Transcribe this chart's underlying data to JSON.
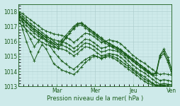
{
  "xlabel": "Pression niveau de la mer( hPa )",
  "bg_color": "#ceeaea",
  "line_color": "#1a5c1a",
  "grid_major_color": "#a8c8c8",
  "grid_minor_color": "#b8d8d8",
  "axis_color": "#1a5c1a",
  "tick_label_color": "#1a5c1a",
  "ylim": [
    1013.0,
    1018.5
  ],
  "yticks": [
    1013,
    1014,
    1015,
    1016,
    1017,
    1018
  ],
  "day_labels": [
    "Mar",
    "Mer",
    "Jeu",
    "Ven"
  ],
  "day_positions": [
    0.25,
    0.5,
    0.75,
    1.0
  ],
  "lines": [
    [
      1018.0,
      1017.85,
      1017.65,
      1017.45,
      1017.25,
      1017.05,
      1016.85,
      1016.7,
      1016.6,
      1016.5,
      1016.45,
      1016.4,
      1016.3,
      1016.15,
      1015.95,
      1016.1,
      1016.35,
      1016.55,
      1016.5,
      1016.35,
      1016.15,
      1015.95,
      1016.0,
      1016.1,
      1016.05,
      1016.0,
      1015.85,
      1015.6,
      1015.35,
      1015.1,
      1014.9,
      1014.7,
      1014.55,
      1014.35,
      1014.15,
      1013.95,
      1013.8,
      1013.85,
      1013.8,
      1013.75
    ],
    [
      1017.75,
      1017.55,
      1017.3,
      1017.05,
      1016.8,
      1016.6,
      1016.45,
      1016.3,
      1016.2,
      1016.1,
      1016.05,
      1016.0,
      1015.9,
      1015.75,
      1015.55,
      1015.7,
      1015.95,
      1016.15,
      1016.1,
      1015.95,
      1015.75,
      1015.55,
      1015.6,
      1015.7,
      1015.65,
      1015.6,
      1015.45,
      1015.2,
      1014.95,
      1014.7,
      1014.5,
      1014.3,
      1014.15,
      1013.95,
      1013.75,
      1013.55,
      1013.4,
      1013.45,
      1013.4,
      1013.35
    ],
    [
      1017.5,
      1017.3,
      1017.05,
      1016.8,
      1016.55,
      1016.35,
      1016.2,
      1016.05,
      1015.95,
      1015.85,
      1015.8,
      1015.75,
      1015.65,
      1015.5,
      1015.3,
      1015.45,
      1015.7,
      1015.9,
      1015.85,
      1015.7,
      1015.5,
      1015.3,
      1015.35,
      1015.45,
      1015.4,
      1015.35,
      1015.2,
      1014.95,
      1014.7,
      1014.45,
      1014.25,
      1014.05,
      1013.9,
      1013.7,
      1013.5,
      1013.3,
      1013.15,
      1013.2,
      1013.15,
      1013.1
    ],
    [
      1017.25,
      1017.05,
      1016.8,
      1016.55,
      1016.3,
      1016.1,
      1015.95,
      1015.8,
      1015.7,
      1015.6,
      1015.55,
      1015.5,
      1015.4,
      1015.25,
      1015.05,
      1015.2,
      1015.45,
      1015.65,
      1015.6,
      1015.45,
      1015.25,
      1015.05,
      1015.1,
      1015.2,
      1015.15,
      1015.1,
      1014.95,
      1014.7,
      1014.45,
      1014.2,
      1014.0,
      1013.8,
      1013.65,
      1013.45,
      1013.25,
      1013.05,
      1013.0,
      1013.0,
      1013.0,
      1013.0
    ],
    [
      1017.7,
      1016.8,
      1016.0,
      1015.3,
      1014.7,
      1015.3,
      1015.8,
      1015.5,
      1015.0,
      1014.5,
      1014.3,
      1014.1,
      1014.0,
      1013.9,
      1013.8,
      1014.0,
      1014.3,
      1014.6,
      1014.8,
      1015.0,
      1015.0,
      1014.9,
      1015.0,
      1015.1,
      1015.0,
      1014.9,
      1014.7,
      1014.5,
      1014.3,
      1014.1,
      1013.9,
      1013.7,
      1013.5,
      1013.35,
      1013.2,
      1013.1,
      1013.1,
      1013.1,
      1013.1,
      1013.1
    ],
    [
      1017.9,
      1017.3,
      1016.7,
      1016.15,
      1015.65,
      1016.0,
      1016.35,
      1016.1,
      1015.7,
      1015.3,
      1015.0,
      1014.7,
      1014.5,
      1014.3,
      1014.15,
      1014.35,
      1014.6,
      1014.8,
      1014.95,
      1015.1,
      1015.0,
      1014.85,
      1014.95,
      1015.0,
      1014.9,
      1014.75,
      1014.55,
      1014.35,
      1014.15,
      1013.95,
      1013.75,
      1013.55,
      1013.35,
      1013.2,
      1013.1,
      1013.05,
      1013.05,
      1013.05,
      1013.0,
      1013.0
    ],
    [
      1017.85,
      1017.55,
      1017.25,
      1016.95,
      1016.7,
      1016.5,
      1016.3,
      1016.1,
      1015.9,
      1015.7,
      1015.5,
      1015.85,
      1016.2,
      1016.55,
      1016.9,
      1017.15,
      1017.2,
      1017.0,
      1016.8,
      1016.6,
      1016.4,
      1016.2,
      1016.0,
      1015.85,
      1015.7,
      1015.55,
      1015.4,
      1015.2,
      1015.0,
      1014.8,
      1014.6,
      1014.4,
      1014.2,
      1014.0,
      1013.8,
      1013.85,
      1015.05,
      1015.35,
      1014.75,
      1014.05
    ],
    [
      1017.95,
      1017.7,
      1017.45,
      1017.2,
      1017.0,
      1016.8,
      1016.6,
      1016.4,
      1016.2,
      1016.0,
      1015.8,
      1016.1,
      1016.4,
      1016.7,
      1017.0,
      1017.2,
      1017.25,
      1017.05,
      1016.85,
      1016.65,
      1016.45,
      1016.25,
      1016.05,
      1015.9,
      1015.75,
      1015.6,
      1015.45,
      1015.25,
      1015.05,
      1014.85,
      1014.65,
      1014.45,
      1014.25,
      1014.05,
      1013.85,
      1013.9,
      1015.1,
      1015.5,
      1014.95,
      1014.15
    ],
    [
      1017.65,
      1017.45,
      1017.25,
      1017.05,
      1016.85,
      1016.65,
      1016.45,
      1016.25,
      1016.05,
      1015.85,
      1015.65,
      1015.95,
      1016.25,
      1016.55,
      1016.85,
      1017.05,
      1017.1,
      1016.9,
      1016.7,
      1016.5,
      1016.3,
      1016.1,
      1015.9,
      1015.75,
      1015.6,
      1015.45,
      1015.3,
      1015.1,
      1014.9,
      1014.7,
      1014.5,
      1014.3,
      1014.1,
      1013.9,
      1013.75,
      1013.75,
      1014.95,
      1015.2,
      1014.6,
      1013.85
    ]
  ]
}
